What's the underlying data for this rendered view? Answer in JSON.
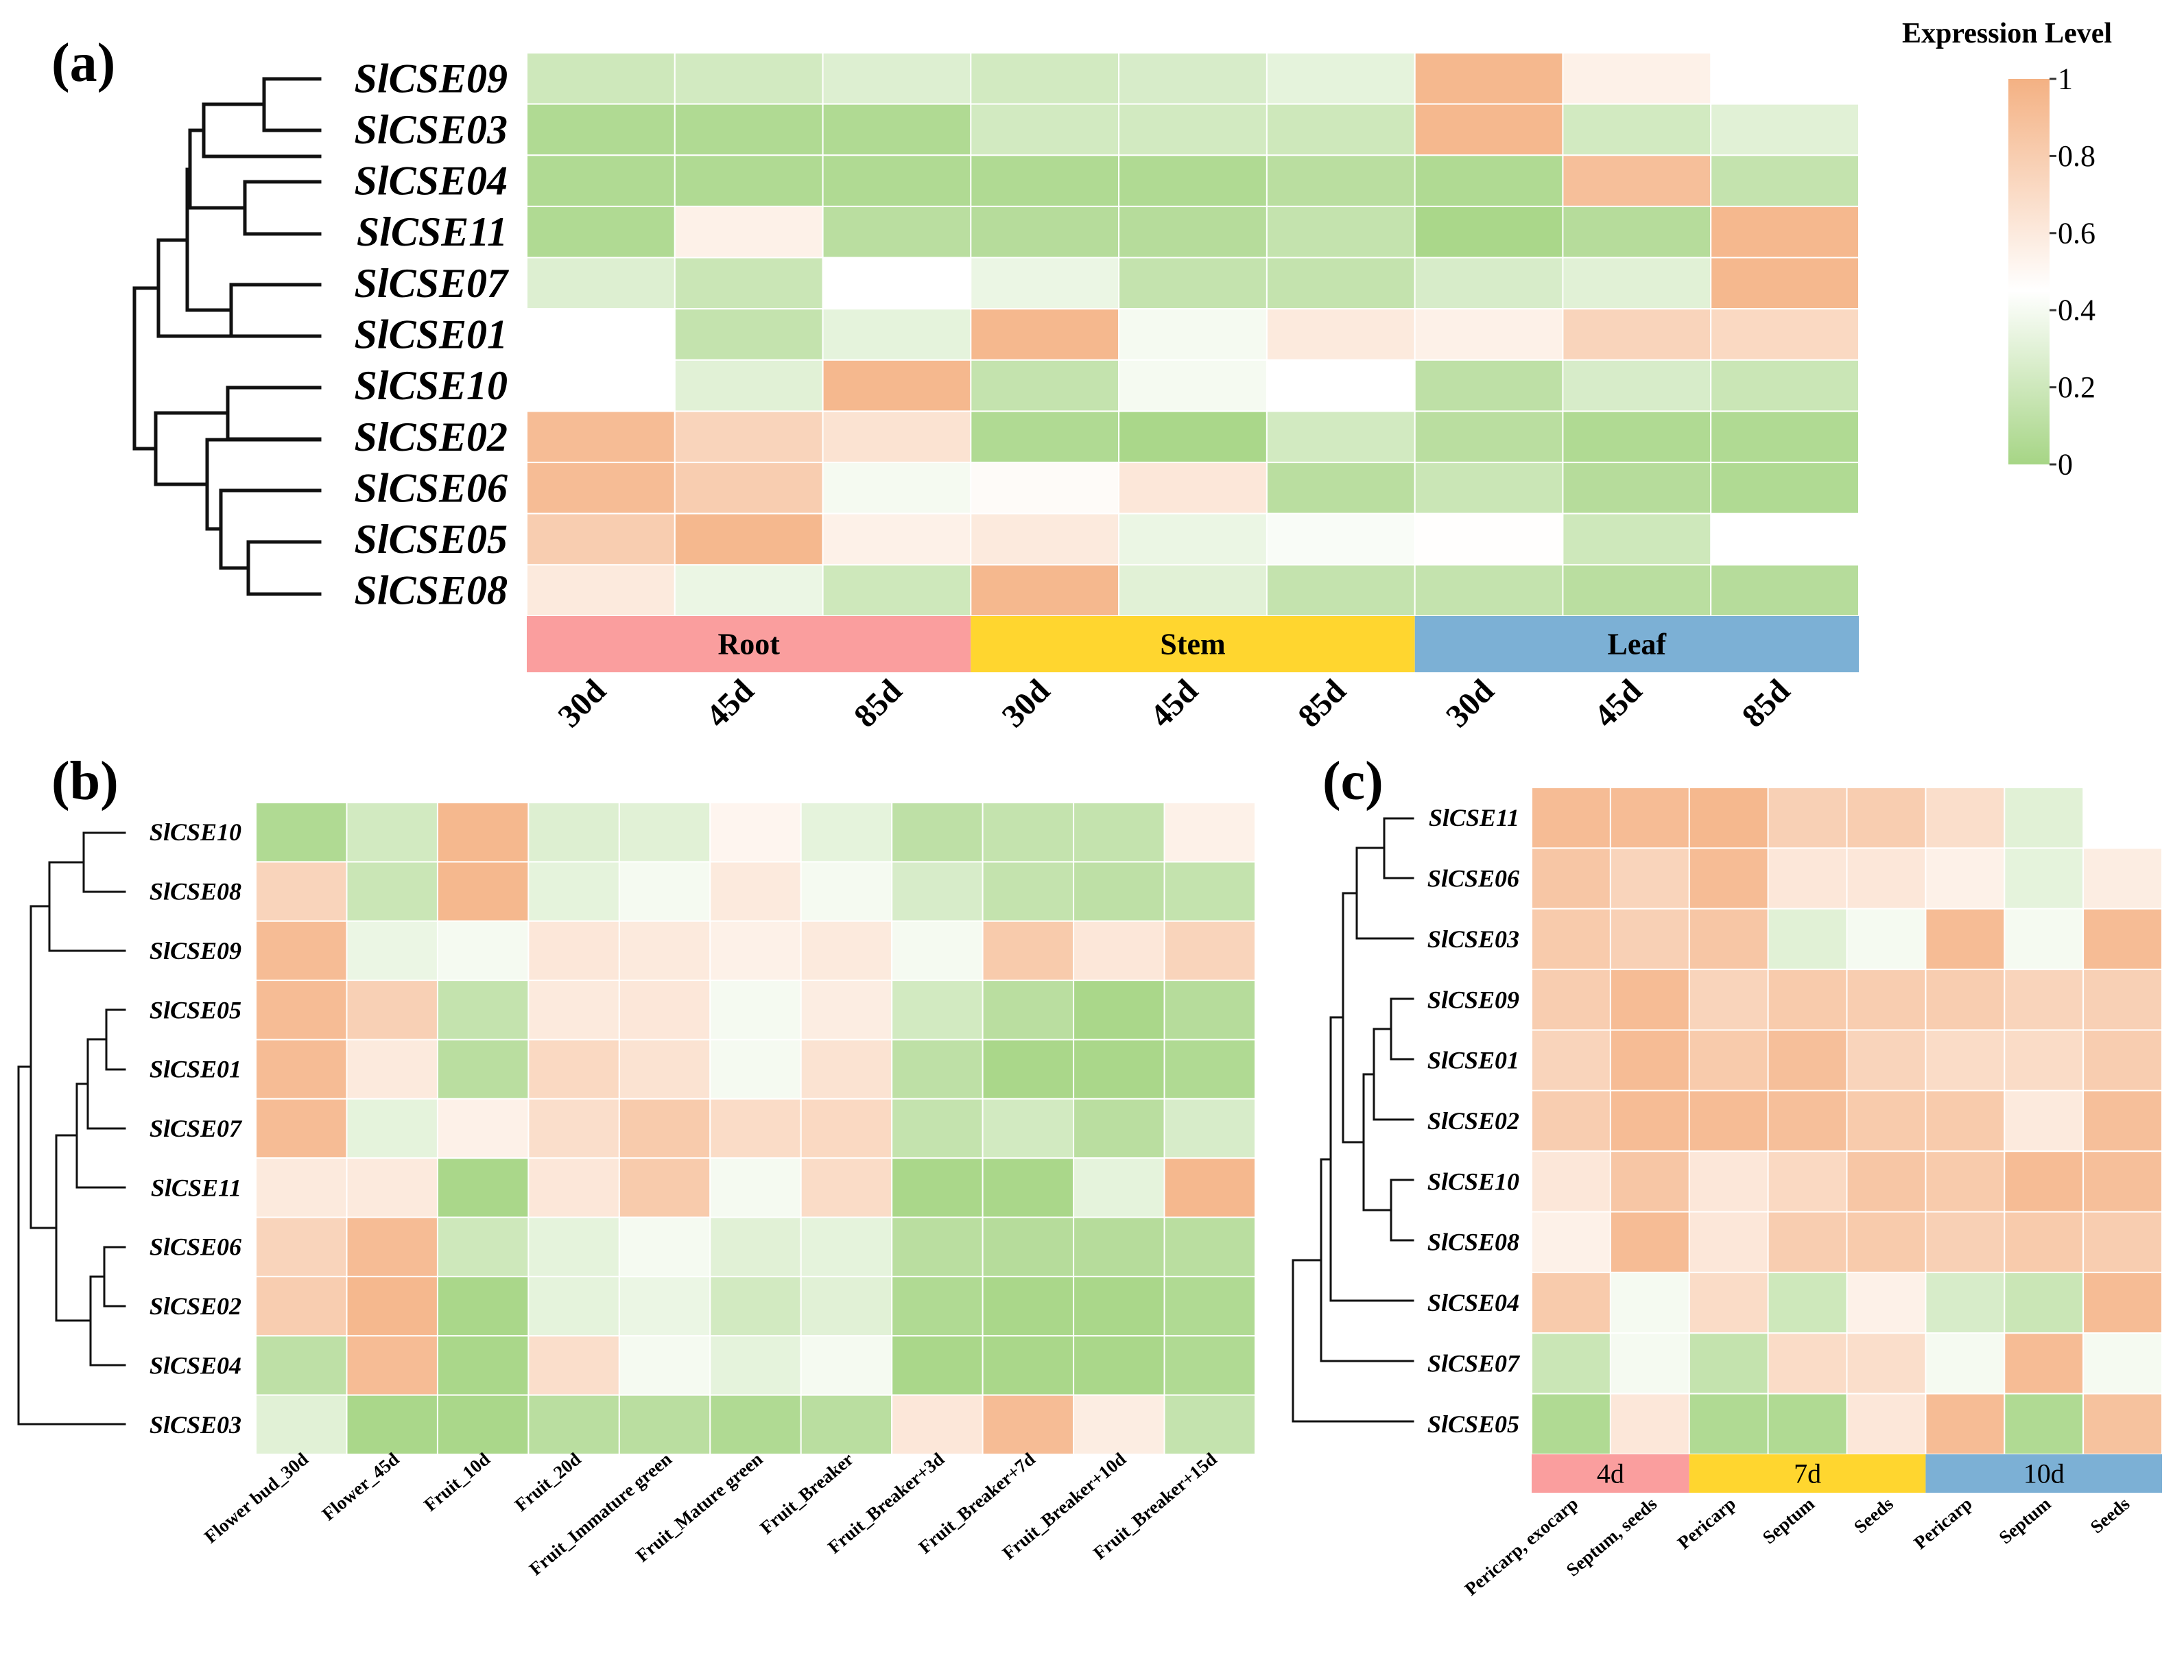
{
  "legend": {
    "title": "Expression Level",
    "ticks": [
      "0",
      "0.2",
      "0.4",
      "0.6",
      "0.8",
      "1"
    ],
    "range": [
      0,
      1
    ]
  },
  "colors": {
    "low": "#a6d585",
    "mid": "#ffffff",
    "high": "#f4b183",
    "root": "#fa9e9e",
    "stem": "#ffd62f",
    "leaf": "#7cb0d5"
  },
  "chart_data": [
    {
      "type": "heatmap",
      "panel": "(a)",
      "rows": [
        "SlCSE09",
        "SlCSE03",
        "SlCSE04",
        "SlCSE11",
        "SlCSE07",
        "SlCSE01",
        "SlCSE10",
        "SlCSE02",
        "SlCSE06",
        "SlCSE05",
        "SlCSE08"
      ],
      "columns": [
        "30d",
        "45d",
        "85d",
        "30d",
        "45d",
        "85d",
        "30d",
        "45d",
        "85d"
      ],
      "groups": [
        {
          "label": "Root",
          "span": 3,
          "color": "#fa9e9e"
        },
        {
          "label": "Stem",
          "span": 3,
          "color": "#ffd62f"
        },
        {
          "label": "Leaf",
          "span": 3,
          "color": "#7cb0d5"
        }
      ],
      "values": [
        [
          0.2,
          0.22,
          0.28,
          0.22,
          0.25,
          0.32,
          0.95,
          0.55,
          null
        ],
        [
          0.05,
          0.05,
          0.05,
          0.22,
          0.22,
          0.2,
          0.95,
          0.22,
          0.3
        ],
        [
          0.05,
          0.05,
          0.05,
          0.05,
          0.05,
          0.1,
          0.05,
          0.9,
          0.15
        ],
        [
          0.05,
          0.55,
          0.1,
          0.08,
          0.08,
          0.15,
          0.02,
          0.08,
          0.95
        ],
        [
          0.28,
          0.18,
          0.45,
          0.35,
          0.15,
          0.15,
          0.25,
          0.3,
          0.95
        ],
        [
          0.45,
          0.15,
          0.32,
          0.95,
          0.4,
          0.6,
          0.55,
          0.75,
          0.72
        ],
        [
          0.45,
          0.3,
          0.95,
          0.15,
          0.4,
          0.45,
          0.12,
          0.25,
          0.18
        ],
        [
          0.92,
          0.75,
          0.65,
          0.05,
          0.02,
          0.22,
          0.1,
          0.05,
          0.05
        ],
        [
          0.92,
          0.8,
          0.4,
          0.48,
          0.62,
          0.1,
          0.18,
          0.08,
          0.05
        ],
        [
          0.8,
          0.95,
          0.55,
          0.6,
          0.35,
          0.42,
          0.46,
          0.2,
          null
        ],
        [
          0.6,
          0.35,
          0.2,
          0.95,
          0.3,
          0.15,
          0.15,
          0.1,
          0.08
        ]
      ]
    },
    {
      "type": "heatmap",
      "panel": "(b)",
      "rows": [
        "SlCSE10",
        "SlCSE08",
        "SlCSE09",
        "SlCSE05",
        "SlCSE01",
        "SlCSE07",
        "SlCSE11",
        "SlCSE06",
        "SlCSE02",
        "SlCSE04",
        "SlCSE03"
      ],
      "columns": [
        "Flower bud_30d",
        "Flower_45d",
        "Fruit_10d",
        "Fruit_20d",
        "Fruit_Immature green",
        "Fruit_Mature green",
        "Fruit_Breaker",
        "Fruit_Breaker+3d",
        "Fruit_Breaker+7d",
        "Fruit_Breaker+10d",
        "Fruit_Breaker+15d"
      ],
      "values": [
        [
          0.05,
          0.22,
          0.95,
          0.28,
          0.3,
          0.52,
          0.32,
          0.12,
          0.15,
          0.15,
          0.55
        ],
        [
          0.75,
          0.18,
          0.95,
          0.32,
          0.4,
          0.6,
          0.4,
          0.25,
          0.15,
          0.12,
          0.15
        ],
        [
          0.92,
          0.35,
          0.4,
          0.62,
          0.6,
          0.55,
          0.6,
          0.4,
          0.82,
          0.62,
          0.75
        ],
        [
          0.92,
          0.78,
          0.15,
          0.6,
          0.62,
          0.4,
          0.58,
          0.22,
          0.1,
          0.02,
          0.08
        ],
        [
          0.92,
          0.6,
          0.1,
          0.72,
          0.65,
          0.4,
          0.65,
          0.12,
          0.02,
          0.02,
          0.05
        ],
        [
          0.92,
          0.32,
          0.55,
          0.68,
          0.82,
          0.7,
          0.72,
          0.15,
          0.22,
          0.1,
          0.25
        ],
        [
          0.6,
          0.6,
          0.02,
          0.62,
          0.82,
          0.4,
          0.7,
          0.02,
          0.02,
          0.32,
          0.95
        ],
        [
          0.75,
          0.92,
          0.2,
          0.32,
          0.4,
          0.3,
          0.32,
          0.1,
          0.08,
          0.08,
          0.1
        ],
        [
          0.8,
          0.95,
          0.02,
          0.32,
          0.35,
          0.22,
          0.3,
          0.05,
          0.02,
          0.02,
          0.05
        ],
        [
          0.12,
          0.92,
          0.02,
          0.68,
          0.4,
          0.32,
          0.4,
          0.02,
          0.02,
          0.02,
          0.05
        ],
        [
          0.3,
          0.02,
          0.02,
          0.1,
          0.1,
          0.05,
          0.1,
          0.62,
          0.92,
          0.58,
          0.15
        ]
      ]
    },
    {
      "type": "heatmap",
      "panel": "(c)",
      "rows": [
        "SlCSE11",
        "SlCSE06",
        "SlCSE03",
        "SlCSE09",
        "SlCSE01",
        "SlCSE02",
        "SlCSE10",
        "SlCSE08",
        "SlCSE04",
        "SlCSE07",
        "SlCSE05"
      ],
      "columns": [
        "Pericarp, exocarp",
        "Septum, seeds",
        "Pericarp",
        "Septum",
        "Seeds",
        "Pericarp",
        "Septum",
        "Seeds"
      ],
      "groups": [
        {
          "label": "4d",
          "span": 2,
          "color": "#fa9e9e"
        },
        {
          "label": "7d",
          "span": 3,
          "color": "#ffd62f"
        },
        {
          "label": "10d",
          "span": 3,
          "color": "#7cb0d5"
        }
      ],
      "values": [
        [
          0.92,
          0.92,
          0.95,
          0.78,
          0.8,
          0.68,
          0.3,
          null
        ],
        [
          0.85,
          0.75,
          0.92,
          0.62,
          0.62,
          0.55,
          0.32,
          0.58
        ],
        [
          0.82,
          0.78,
          0.85,
          0.3,
          0.4,
          0.92,
          0.4,
          0.92
        ],
        [
          0.8,
          0.92,
          0.75,
          0.82,
          0.8,
          0.8,
          0.75,
          0.78
        ],
        [
          0.75,
          0.92,
          0.82,
          0.9,
          0.75,
          0.7,
          0.7,
          0.8
        ],
        [
          0.8,
          0.92,
          0.92,
          0.9,
          0.82,
          0.82,
          0.6,
          0.9
        ],
        [
          0.62,
          0.85,
          0.62,
          0.72,
          0.85,
          0.82,
          0.92,
          0.9
        ],
        [
          0.55,
          0.92,
          0.62,
          0.8,
          0.82,
          0.78,
          0.82,
          0.8
        ],
        [
          0.82,
          0.4,
          0.7,
          0.2,
          0.55,
          0.25,
          0.18,
          0.92
        ],
        [
          0.18,
          0.4,
          0.15,
          0.7,
          0.68,
          0.4,
          0.92,
          0.4
        ],
        [
          0.05,
          0.62,
          0.05,
          0.05,
          0.62,
          0.92,
          0.05,
          0.88
        ]
      ]
    }
  ]
}
